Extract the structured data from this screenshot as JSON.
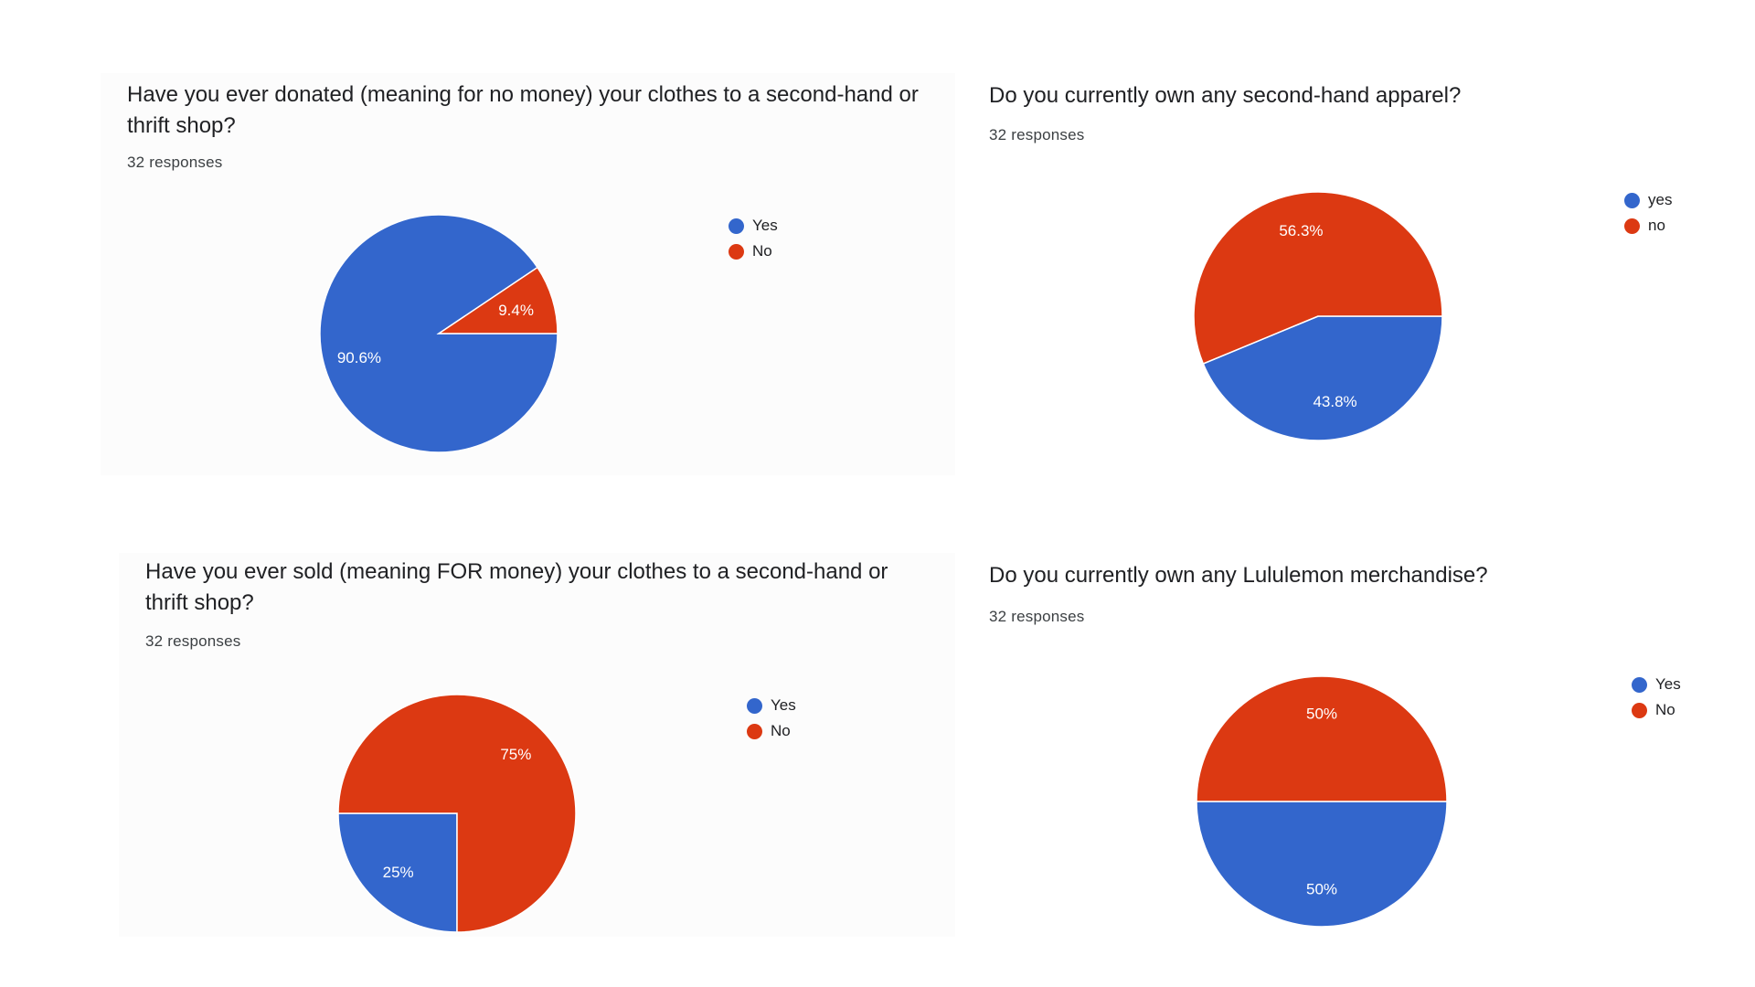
{
  "colors": {
    "blue": "#3366cc",
    "red": "#dc3912"
  },
  "chart_data": [
    {
      "type": "pie",
      "title": "Have you ever donated (meaning for no money) your clothes to a second-hand or thrift shop?",
      "subtitle": "32 responses",
      "legend_position": "right",
      "slices": [
        {
          "label": "Yes",
          "value": 90.6,
          "display": "90.6%",
          "color": "#3366cc"
        },
        {
          "label": "No",
          "value": 9.4,
          "display": "9.4%",
          "color": "#dc3912"
        }
      ]
    },
    {
      "type": "pie",
      "title": "Do you currently own any second-hand apparel?",
      "subtitle": "32 responses",
      "legend_position": "right",
      "slices": [
        {
          "label": "yes",
          "value": 43.8,
          "display": "43.8%",
          "color": "#3366cc"
        },
        {
          "label": "no",
          "value": 56.3,
          "display": "56.3%",
          "color": "#dc3912"
        }
      ]
    },
    {
      "type": "pie",
      "title": "Have you ever sold (meaning FOR money) your clothes to a second-hand or thrift shop?",
      "subtitle": "32 responses",
      "legend_position": "right",
      "slices": [
        {
          "label": "Yes",
          "value": 25,
          "display": "25%",
          "color": "#3366cc"
        },
        {
          "label": "No",
          "value": 75,
          "display": "75%",
          "color": "#dc3912"
        }
      ]
    },
    {
      "type": "pie",
      "title": "Do you currently own any Lululemon merchandise?",
      "subtitle": "32 responses",
      "legend_position": "right",
      "slices": [
        {
          "label": "Yes",
          "value": 50,
          "display": "50%",
          "color": "#3366cc"
        },
        {
          "label": "No",
          "value": 50,
          "display": "50%",
          "color": "#dc3912"
        }
      ]
    }
  ]
}
